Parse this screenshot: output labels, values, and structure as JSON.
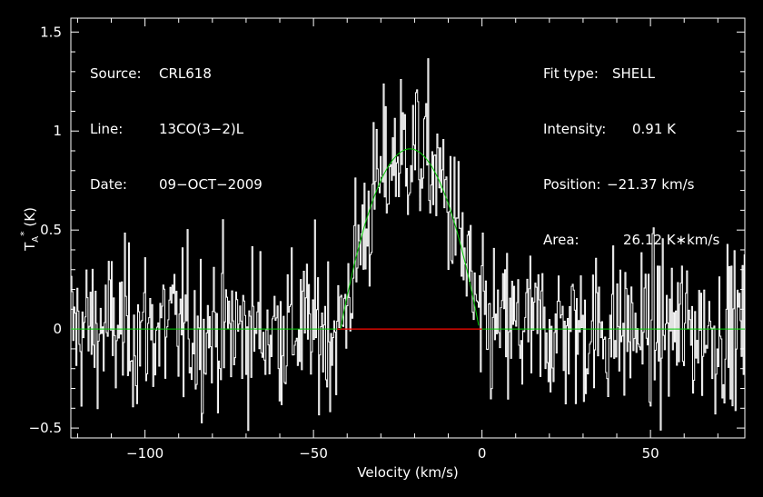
{
  "chart_data": {
    "type": "line",
    "xlabel": "Velocity (km/s)",
    "ylabel": "T_A^* (K)",
    "xlim": [
      -122,
      78
    ],
    "ylim": [
      -0.55,
      1.57
    ],
    "xticks": [
      -100,
      -50,
      0,
      50
    ],
    "xtick_labels": [
      "−100",
      "−50",
      "0",
      "50"
    ],
    "yticks": [
      -0.5,
      0,
      0.5,
      1,
      1.5
    ],
    "ytick_labels": [
      "−0.5",
      "0",
      "0.5",
      "1",
      "1.5"
    ],
    "series": [
      {
        "kind": "spectrum",
        "color": "#ffffff",
        "x_start": -122,
        "x_step": 0.3,
        "profile": {
          "center": -21.37,
          "peak": 0.91,
          "half_width": 20.6
        },
        "noise_rms": 0.2
      },
      {
        "kind": "fit",
        "name": "SHELL fit",
        "color": "#00cc00",
        "center": -21.37,
        "peak": 0.91,
        "half_width": 20.6
      },
      {
        "kind": "fit_window",
        "color": "#ff0000",
        "x": [
          -43,
          0
        ],
        "y": 0
      }
    ],
    "grid": false
  },
  "annotations": {
    "left": [
      {
        "key": "Source:",
        "value": "CRL618"
      },
      {
        "key": "Line:",
        "value": "13CO(3−2)L"
      },
      {
        "key": "Date:",
        "value": "09−OCT−2009"
      }
    ],
    "right": [
      {
        "key": "Fit type:",
        "value": "SHELL"
      },
      {
        "key": "Intensity:",
        "value": "0.91 K"
      },
      {
        "key": "Position:",
        "value": "−21.37 km/s"
      },
      {
        "key": "Area:",
        "value": "26.12 K∗km/s"
      }
    ]
  },
  "colors": {
    "background": "#000000",
    "frame": "#ffffff",
    "spectrum": "#ffffff",
    "fit": "#00cc00",
    "window": "#ff0000"
  }
}
